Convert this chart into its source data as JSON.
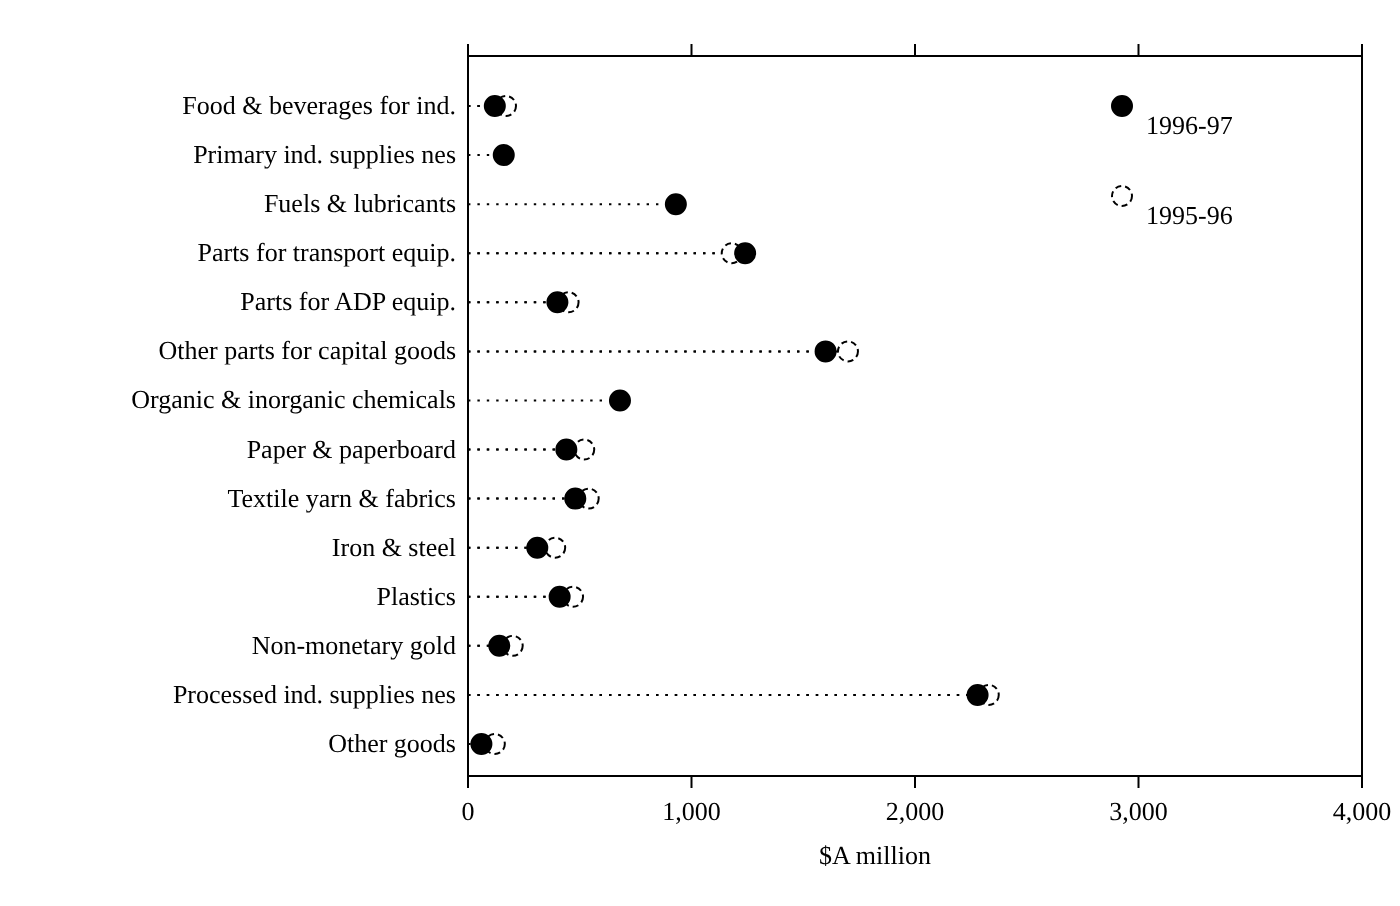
{
  "chart_data": {
    "type": "lollipop",
    "orientation": "horizontal",
    "xlabel": "$A million",
    "categories": [
      "Food & beverages for ind.",
      "Primary ind. supplies nes",
      "Fuels & lubricants",
      "Parts for transport equip.",
      "Parts for ADP equip.",
      "Other parts for capital goods",
      "Organic & inorganic chemicals",
      "Paper & paperboard",
      "Textile yarn & fabrics",
      "Iron & steel",
      "Plastics",
      "Non-monetary gold",
      "Processed ind. supplies nes",
      "Other goods"
    ],
    "series": [
      {
        "name": "1995-96",
        "color": "#ffffff",
        "values": [
          170,
          null,
          null,
          1180,
          450,
          1700,
          null,
          520,
          540,
          390,
          470,
          200,
          2330,
          120
        ]
      },
      {
        "name": "1996-97",
        "color": "#000000",
        "values": [
          120,
          160,
          930,
          1240,
          400,
          1600,
          680,
          440,
          480,
          310,
          410,
          140,
          2280,
          60
        ]
      }
    ],
    "xlim": [
      0,
      4000
    ],
    "xticks": [
      0,
      {
        "value": 1000,
        "label": "1,000"
      },
      {
        "value": 2000,
        "label": "2,000"
      },
      {
        "value": 3000,
        "label": "3,000"
      },
      {
        "value": 4000,
        "label": "4,000"
      }
    ],
    "legend": "top right",
    "marker": "circle",
    "line_style": "dotted",
    "grid": false
  }
}
